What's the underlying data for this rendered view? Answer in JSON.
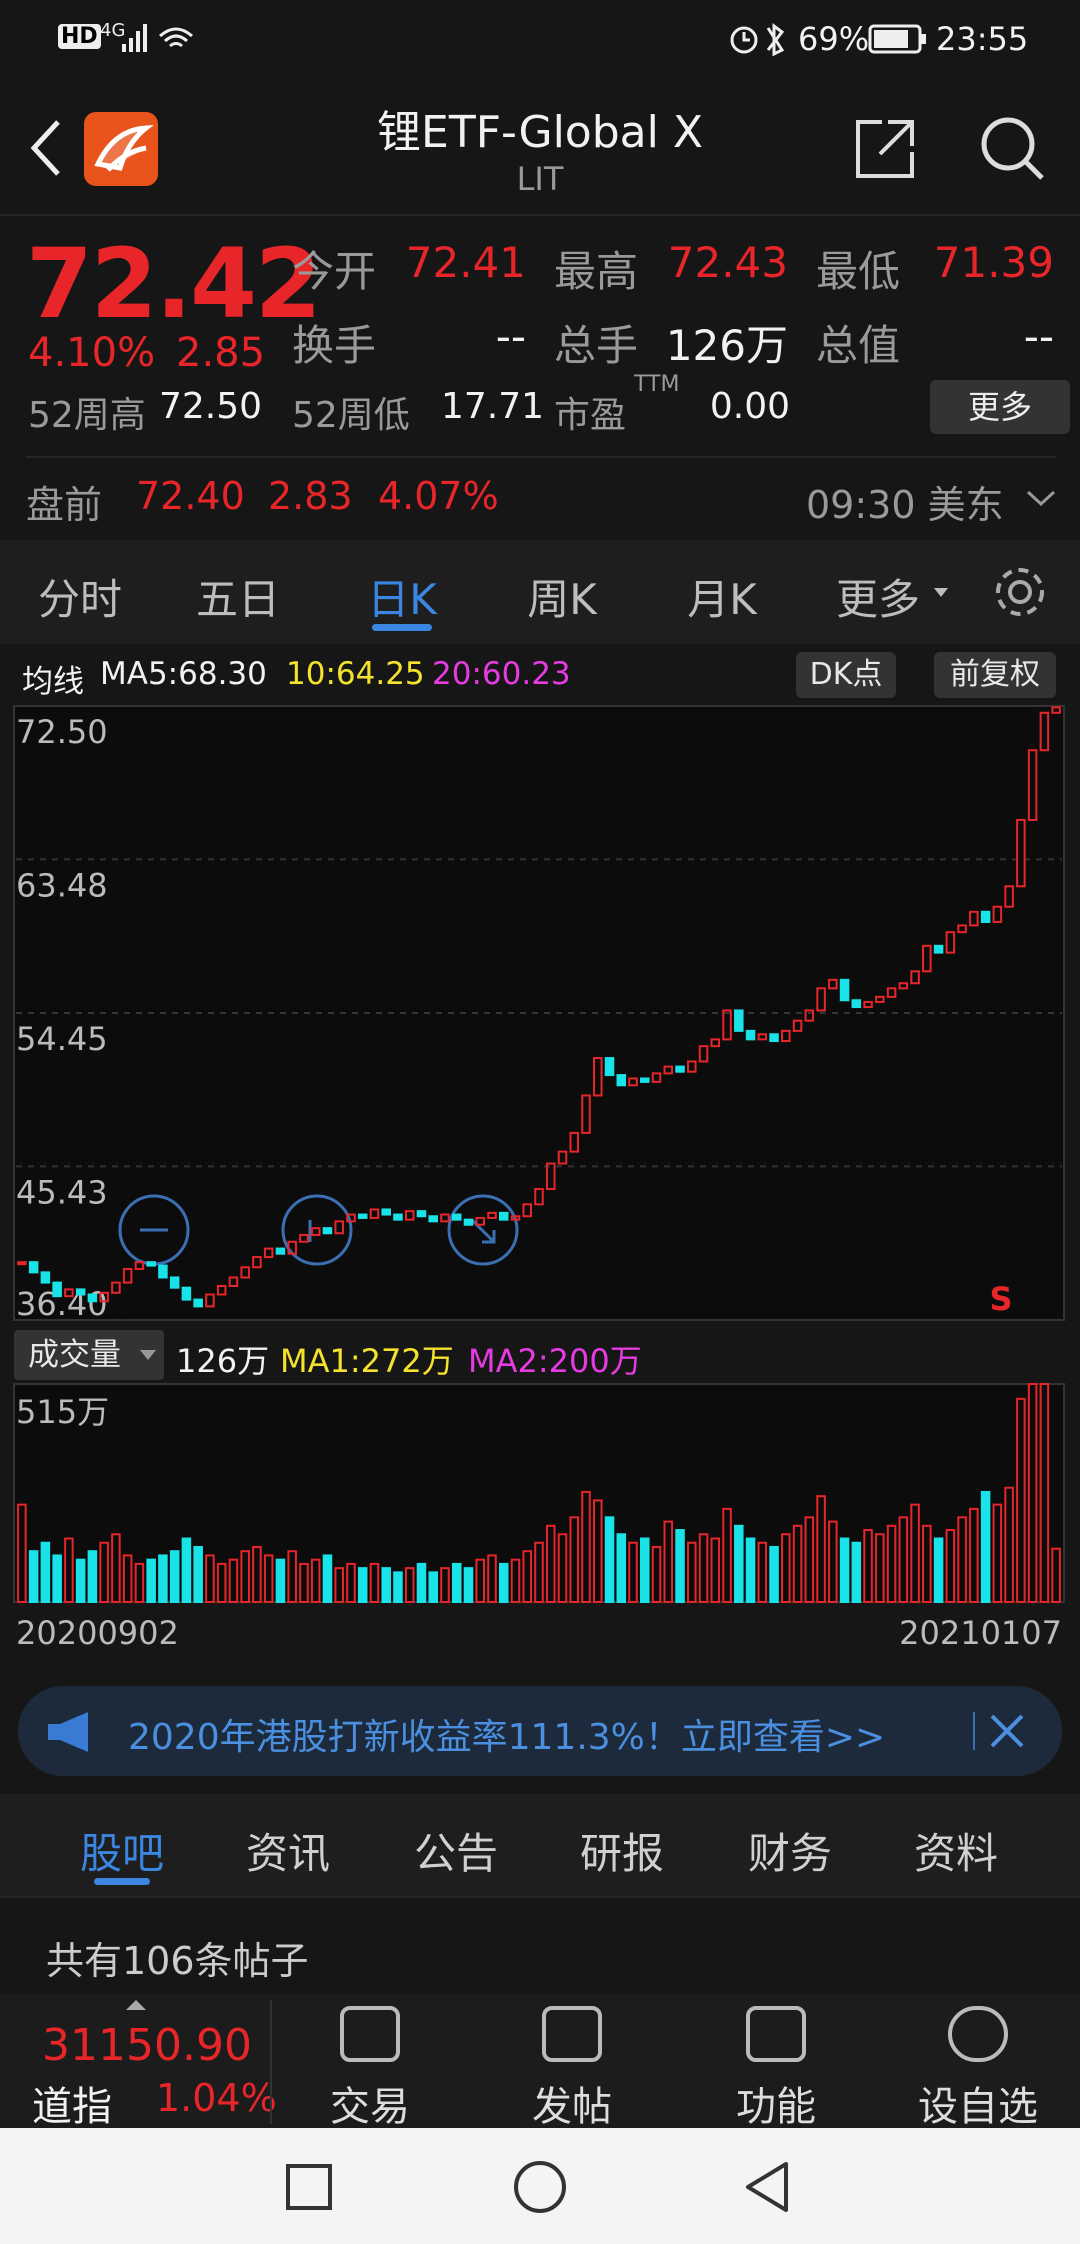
{
  "status": {
    "hd": "HD",
    "network": "4G",
    "battery": "69%",
    "time": "23:55"
  },
  "header": {
    "title": "锂ETF-Global X",
    "symbol": "LIT"
  },
  "quote": {
    "price": "72.42",
    "change_pct": "4.10%",
    "change": "2.85",
    "fields": [
      {
        "label": "今开",
        "value": "72.41"
      },
      {
        "label": "最高",
        "value": "72.43"
      },
      {
        "label": "最低",
        "value": "71.39"
      },
      {
        "label": "换手",
        "value": "--"
      },
      {
        "label": "总手",
        "value": "126万"
      },
      {
        "label": "总值",
        "value": "--"
      },
      {
        "label": "52周高",
        "value": "72.50"
      },
      {
        "label": "52周低",
        "value": "17.71"
      },
      {
        "label": "市盈",
        "sup": "TTM",
        "value": "0.00"
      }
    ],
    "more": "更多"
  },
  "premarket": {
    "label": "盘前",
    "price": "72.40",
    "change": "2.83",
    "change_pct": "4.07%",
    "time": "09:30 美东"
  },
  "tabs": {
    "items": [
      "分时",
      "五日",
      "日K",
      "周K",
      "月K",
      "更多"
    ],
    "active": 2
  },
  "ma_legend": {
    "label": "均线",
    "ma5": "MA5:68.30",
    "ma10": "10:64.25",
    "ma20": "20:60.23",
    "buttons": [
      "DK点",
      "前复权"
    ]
  },
  "kline": {
    "type": "candlestick",
    "ylim": [
      36.4,
      72.5
    ],
    "yticks": [
      {
        "value": 72.5,
        "label": "72.50"
      },
      63.48,
      54.45,
      45.43,
      {
        "value": 36.4,
        "label": "36.40"
      }
    ],
    "marker": "S",
    "closes": [
      39.8,
      39.2,
      38.6,
      37.8,
      38.2,
      37.9,
      37.5,
      38.0,
      38.6,
      39.4,
      39.8,
      39.6,
      38.9,
      38.3,
      37.6,
      37.2,
      37.9,
      38.4,
      38.9,
      39.5,
      40.1,
      40.6,
      40.3,
      41.0,
      41.4,
      41.8,
      41.5,
      42.2,
      42.6,
      42.4,
      42.9,
      42.6,
      42.3,
      42.8,
      42.5,
      42.2,
      42.6,
      42.3,
      42.0,
      42.4,
      42.7,
      42.3,
      42.5,
      43.2,
      44.1,
      45.6,
      46.3,
      47.4,
      49.6,
      51.8,
      50.8,
      50.2,
      50.6,
      50.4,
      50.9,
      51.3,
      51.0,
      51.6,
      52.5,
      52.9,
      54.6,
      53.4,
      52.9,
      53.2,
      52.8,
      53.4,
      54.0,
      54.6,
      55.9,
      56.4,
      55.2,
      54.8,
      55.1,
      55.4,
      55.9,
      56.2,
      56.9,
      58.4,
      58.0,
      59.2,
      59.6,
      60.4,
      59.8,
      60.7,
      61.9,
      65.8,
      69.9,
      72.1,
      72.42
    ],
    "x_labels": [
      "20200902",
      "20210107"
    ]
  },
  "volume": {
    "label": "成交量",
    "current": "126万",
    "ma1": "MA1:272万",
    "ma2": "MA2:200万",
    "ylim": [
      0,
      515
    ],
    "yticks": [
      {
        "value": 515,
        "label": "515万"
      }
    ],
    "values": [
      230,
      120,
      140,
      110,
      150,
      100,
      120,
      140,
      160,
      110,
      90,
      100,
      110,
      120,
      150,
      130,
      110,
      90,
      100,
      120,
      130,
      110,
      100,
      120,
      90,
      100,
      110,
      80,
      90,
      80,
      90,
      80,
      70,
      80,
      90,
      70,
      80,
      90,
      80,
      100,
      110,
      90,
      100,
      120,
      140,
      180,
      160,
      200,
      260,
      240,
      200,
      160,
      140,
      150,
      130,
      190,
      170,
      140,
      160,
      150,
      220,
      180,
      150,
      140,
      130,
      160,
      180,
      200,
      250,
      190,
      150,
      140,
      170,
      160,
      180,
      200,
      230,
      180,
      150,
      170,
      200,
      220,
      260,
      230,
      270,
      480,
      515,
      515,
      126
    ]
  },
  "banner": {
    "text": "2020年港股打新收益率111.3%！立即查看>>"
  },
  "sub_tabs": {
    "items": [
      "股吧",
      "资讯",
      "公告",
      "研报",
      "财务",
      "资料"
    ],
    "active": 0
  },
  "post_count": "共有106条帖子",
  "bottom_bar": {
    "index_value": "31150.90",
    "index_name": "道指",
    "index_pct": "1.04%",
    "actions": [
      "交易",
      "发帖",
      "功能",
      "设自选"
    ]
  }
}
